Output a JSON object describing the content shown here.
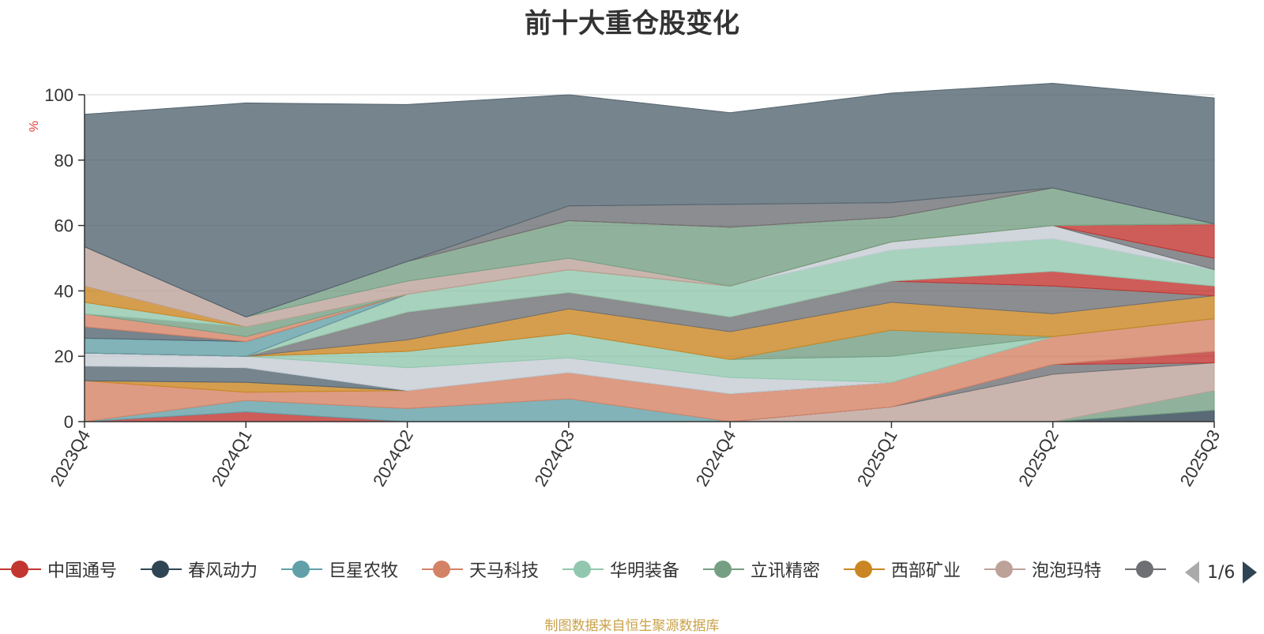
{
  "title": "前十大重仓股变化",
  "source_note": "制图数据来自恒生聚源数据库",
  "legend_pager": "1/6",
  "legend": [
    {
      "name": "中国通号",
      "color": "#c23531"
    },
    {
      "name": "春风动力",
      "color": "#2f4554"
    },
    {
      "name": "巨星农牧",
      "color": "#61a0a8"
    },
    {
      "name": "天马科技",
      "color": "#d48265"
    },
    {
      "name": "华明装备",
      "color": "#91c7ae"
    },
    {
      "name": "立讯精密",
      "color": "#749f83"
    },
    {
      "name": "西部矿业",
      "color": "#ca8622"
    },
    {
      "name": "泡泡玛特",
      "color": "#bda29a"
    },
    {
      "name": "…",
      "color": "#6e7074"
    }
  ],
  "chart_data": {
    "type": "area",
    "title": "前十大重仓股变化",
    "ylabel": "%",
    "ylim": [
      0,
      100
    ],
    "yticks": [
      0,
      20,
      40,
      60,
      80,
      100
    ],
    "grid": true,
    "legend_position": "bottom",
    "categories": [
      "2023Q4",
      "2024Q1",
      "2024Q2",
      "2024Q3",
      "2024Q4",
      "2025Q1",
      "2025Q2",
      "2025Q3"
    ],
    "series": [
      {
        "name": "春风动力",
        "color": "#2f4554",
        "values": [
          0,
          0,
          0,
          0,
          0,
          0,
          0,
          3.5
        ]
      },
      {
        "name": "立讯精密",
        "color": "#749f83",
        "values": [
          0,
          0,
          0,
          0,
          0,
          0,
          0,
          6
        ]
      },
      {
        "name": "泡泡玛特",
        "color": "#bda29a",
        "values": [
          0,
          0,
          0,
          0,
          0,
          4.5,
          14.5,
          8.5
        ]
      },
      {
        "name": "",
        "color": "#6e7074",
        "values": [
          0,
          0,
          0,
          0,
          0,
          0,
          3,
          0
        ]
      },
      {
        "name": "中国通号",
        "color": "#c23531",
        "values": [
          0,
          3,
          0,
          0,
          0,
          0,
          0,
          3.5
        ]
      },
      {
        "name": "巨星农牧",
        "color": "#61a0a8",
        "values": [
          0,
          3.5,
          4,
          7,
          0,
          0,
          0,
          0
        ]
      },
      {
        "name": "天马科技",
        "color": "#d48265",
        "values": [
          12.5,
          2.5,
          5.5,
          8,
          8.5,
          7.5,
          8.5,
          10
        ]
      },
      {
        "name": "西部矿业",
        "color": "#ca8622",
        "values": [
          0,
          3,
          0,
          0,
          0,
          0,
          0,
          0
        ]
      },
      {
        "name": "",
        "color": "#546570",
        "values": [
          4.5,
          4.5,
          0,
          0,
          0,
          0,
          0,
          0
        ]
      },
      {
        "name": "",
        "color": "#c4ccd3",
        "values": [
          4,
          3.5,
          7,
          4.5,
          5,
          0,
          0,
          0
        ]
      },
      {
        "name": "华明装备",
        "color": "#91c7ae",
        "values": [
          0,
          0,
          5,
          7.5,
          5.5,
          8,
          0,
          0
        ]
      },
      {
        "name": "",
        "color": "#749f83",
        "values": [
          0,
          0,
          0,
          0,
          0,
          8,
          0,
          0
        ]
      },
      {
        "name": "",
        "color": "#ca8622",
        "values": [
          0,
          0,
          3.5,
          7.5,
          8.5,
          8.5,
          7,
          7
        ]
      },
      {
        "name": "",
        "color": "#6e7074",
        "values": [
          0,
          0,
          8.5,
          5,
          4.5,
          6.5,
          8.5,
          0
        ]
      },
      {
        "name": "",
        "color": "#c23531",
        "values": [
          0,
          0,
          0,
          0,
          0,
          0,
          4.5,
          3
        ]
      },
      {
        "name": "",
        "color": "#91c7ae",
        "values": [
          0,
          0,
          5.5,
          7,
          9.5,
          9.5,
          10,
          5
        ]
      },
      {
        "name": "",
        "color": "#c4ccd3",
        "values": [
          0,
          0,
          0,
          0,
          0,
          2.5,
          4,
          0
        ]
      },
      {
        "name": "",
        "color": "#6e7074",
        "values": [
          0,
          0,
          0,
          0,
          0,
          0,
          0,
          3.5
        ]
      },
      {
        "name": "",
        "color": "#c23531",
        "values": [
          0,
          0,
          0,
          0,
          0,
          0,
          0,
          10.5
        ]
      },
      {
        "name": "",
        "color": "#61a0a8",
        "values": [
          4.5,
          4.5,
          0,
          0,
          0,
          0,
          0,
          0
        ]
      },
      {
        "name": "",
        "color": "#546570",
        "values": [
          3.5,
          0,
          0,
          0,
          0,
          0,
          0,
          0
        ]
      },
      {
        "name": "",
        "color": "#d48265",
        "values": [
          4,
          1.5,
          0,
          0,
          0,
          0,
          0,
          0
        ]
      },
      {
        "name": "",
        "color": "#749f83",
        "values": [
          0,
          3,
          0,
          0,
          0,
          0,
          0,
          0
        ]
      },
      {
        "name": "",
        "color": "#91c7ae",
        "values": [
          3.5,
          0,
          0,
          0,
          0,
          0,
          0,
          0
        ]
      },
      {
        "name": "",
        "color": "#ca8622",
        "values": [
          5,
          0,
          0,
          0,
          0,
          0,
          0,
          0
        ]
      },
      {
        "name": "",
        "color": "#bda29a",
        "values": [
          12,
          3,
          4,
          3.5,
          0,
          0,
          0,
          0
        ]
      },
      {
        "name": "",
        "color": "#749f83",
        "values": [
          0,
          0,
          6,
          11.5,
          18,
          7.5,
          11.5,
          0
        ]
      },
      {
        "name": "",
        "color": "#c23531",
        "values": [
          0,
          0,
          0,
          0,
          0,
          0,
          0,
          0
        ]
      },
      {
        "name": "",
        "color": "#6e7074",
        "values": [
          0,
          0,
          0,
          4.5,
          7,
          4.5,
          0,
          0
        ]
      },
      {
        "name": "",
        "color": "#546570",
        "values": [
          40.5,
          65.5,
          48,
          34,
          28,
          33.5,
          32,
          38.5
        ]
      }
    ]
  }
}
